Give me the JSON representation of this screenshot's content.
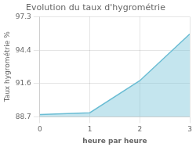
{
  "chart_data": {
    "type": "line",
    "title": "Evolution du taux d'hygrométrie",
    "xlabel": "heure par heure",
    "ylabel": "Taux hygrométrie %",
    "x": [
      0,
      1,
      2,
      3
    ],
    "values": [
      88.9,
      89.05,
      91.8,
      95.8
    ],
    "color": "#6bbdd4",
    "xlim": [
      0,
      3
    ],
    "xticks": [
      0,
      1,
      2,
      3
    ],
    "ylim": [
      88.7,
      97.3
    ],
    "yticks": [
      88.7,
      91.6,
      94.4,
      97.3
    ],
    "grid": true
  }
}
